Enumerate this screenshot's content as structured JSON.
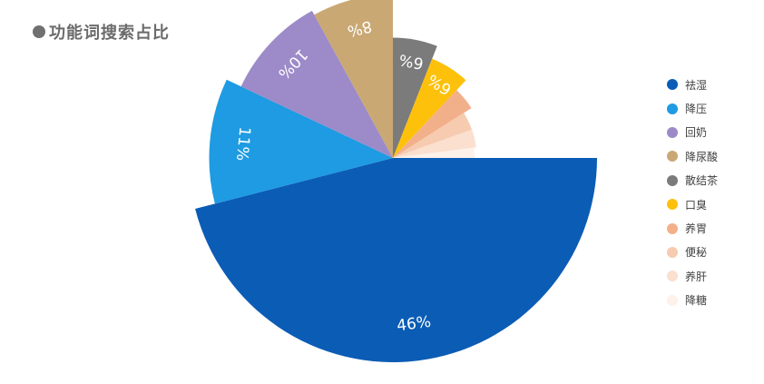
{
  "title": "功能词搜索占比",
  "chart_data": {
    "type": "pie",
    "title": "功能词搜索占比",
    "legend_position": "right",
    "slices": [
      {
        "name": "祛湿",
        "value": 46,
        "label": "46%",
        "color": "#0B5CB5",
        "radius_scale": 0.9
      },
      {
        "name": "降压",
        "value": 11,
        "label": "11%",
        "color": "#1E9BE2",
        "radius_scale": 0.81
      },
      {
        "name": "回奶",
        "value": 10,
        "label": "10%",
        "color": "#9C8BC8",
        "radius_scale": 0.74
      },
      {
        "name": "降尿酸",
        "value": 8,
        "label": "8%",
        "color": "#C9A874",
        "radius_scale": 0.72
      },
      {
        "name": "散结茶",
        "value": 6,
        "label": "6%",
        "color": "#7B7B7B",
        "radius_scale": 0.53
      },
      {
        "name": "口臭",
        "value": 6,
        "label": "6%",
        "color": "#FDC10B",
        "radius_scale": 0.47
      },
      {
        "name": "养胃",
        "value": 4,
        "label": "",
        "color": "#F2B08A",
        "radius_scale": 0.41
      },
      {
        "name": "便秘",
        "value": 3.5,
        "label": "",
        "color": "#F6CBB0",
        "radius_scale": 0.37
      },
      {
        "name": "养肝",
        "value": 3.5,
        "label": "",
        "color": "#FBDFCF",
        "radius_scale": 0.37
      },
      {
        "name": "降糖",
        "value": 2,
        "label": "",
        "color": "#FDF1E9",
        "radius_scale": 0.36
      }
    ]
  }
}
